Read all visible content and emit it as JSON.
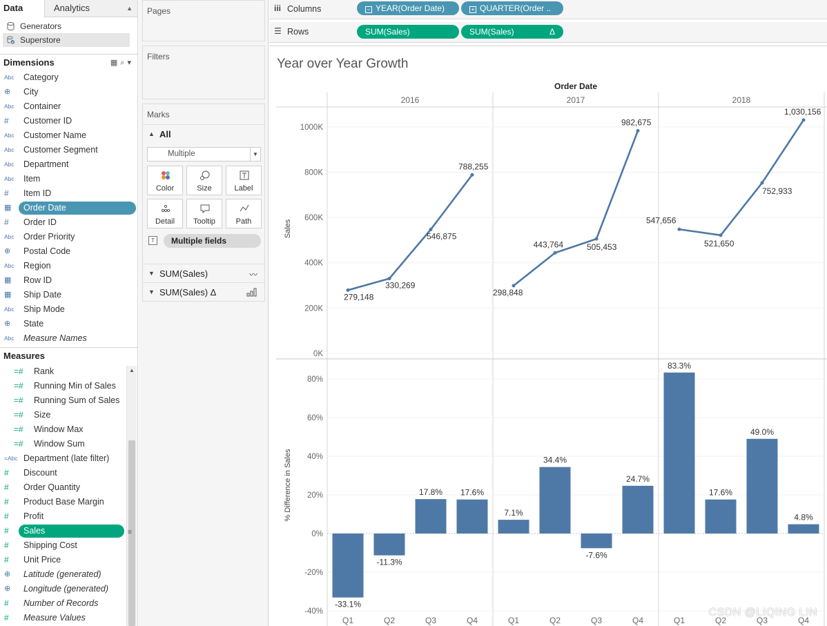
{
  "data_pane": {
    "tabs": [
      "Data",
      "Analytics"
    ],
    "datasources": [
      "Generators",
      "Superstore"
    ],
    "dimensions_header": "Dimensions",
    "dimensions": [
      {
        "label": "Category",
        "icon": "Abc",
        "type": "string"
      },
      {
        "label": "City",
        "icon": "globe",
        "type": "geo"
      },
      {
        "label": "Container",
        "icon": "Abc",
        "type": "string"
      },
      {
        "label": "Customer ID",
        "icon": "#",
        "type": "number"
      },
      {
        "label": "Customer Name",
        "icon": "Abc",
        "type": "string"
      },
      {
        "label": "Customer Segment",
        "icon": "Abc",
        "type": "string"
      },
      {
        "label": "Department",
        "icon": "Abc",
        "type": "string"
      },
      {
        "label": "Item",
        "icon": "Abc",
        "type": "string"
      },
      {
        "label": "Item ID",
        "icon": "#",
        "type": "number"
      },
      {
        "label": "Order Date",
        "icon": "calendar",
        "type": "date",
        "highlighted": true
      },
      {
        "label": "Order ID",
        "icon": "#",
        "type": "number"
      },
      {
        "label": "Order Priority",
        "icon": "Abc",
        "type": "string"
      },
      {
        "label": "Postal Code",
        "icon": "globe",
        "type": "geo"
      },
      {
        "label": "Region",
        "icon": "Abc",
        "type": "string"
      },
      {
        "label": "Row ID",
        "icon": "calendar",
        "type": "date"
      },
      {
        "label": "Ship Date",
        "icon": "calendar",
        "type": "date"
      },
      {
        "label": "Ship Mode",
        "icon": "Abc",
        "type": "string"
      },
      {
        "label": "State",
        "icon": "globe",
        "type": "geo"
      },
      {
        "label": "Measure Names",
        "icon": "Abc",
        "type": "string",
        "italic": true
      }
    ],
    "measures_header": "Measures",
    "measures": [
      {
        "label": "Rank",
        "icon": "=#",
        "indent": true
      },
      {
        "label": "Running Min of Sales",
        "icon": "=#",
        "indent": true
      },
      {
        "label": "Running Sum of Sales",
        "icon": "=#",
        "indent": true
      },
      {
        "label": "Size",
        "icon": "=#",
        "indent": true
      },
      {
        "label": "Window Max",
        "icon": "=#",
        "indent": true
      },
      {
        "label": "Window Sum",
        "icon": "=#",
        "indent": true
      },
      {
        "label": "Department (late filter)",
        "icon": "=Abc"
      },
      {
        "label": "Discount",
        "icon": "#"
      },
      {
        "label": "Order Quantity",
        "icon": "#"
      },
      {
        "label": "Product Base Margin",
        "icon": "#"
      },
      {
        "label": "Profit",
        "icon": "#"
      },
      {
        "label": "Sales",
        "icon": "#",
        "highlighted": true
      },
      {
        "label": "Shipping Cost",
        "icon": "#"
      },
      {
        "label": "Unit Price",
        "icon": "#"
      },
      {
        "label": "Latitude (generated)",
        "icon": "globe",
        "italic": true
      },
      {
        "label": "Longitude (generated)",
        "icon": "globe",
        "italic": true
      },
      {
        "label": "Number of Records",
        "icon": "#",
        "italic": true
      },
      {
        "label": "Measure Values",
        "icon": "#",
        "italic": true
      }
    ]
  },
  "cards": {
    "pages": "Pages",
    "filters": "Filters",
    "marks": "Marks",
    "marks_all": "All",
    "mark_type": "Multiple",
    "mark_buttons": [
      "Color",
      "Size",
      "Label",
      "Detail",
      "Tooltip",
      "Path"
    ],
    "mark_field": "Multiple fields",
    "mark_rows": [
      {
        "label": "SUM(Sales)",
        "icon": "line"
      },
      {
        "label": "SUM(Sales) Δ",
        "icon": "bar"
      }
    ]
  },
  "shelves": {
    "columns_label": "Columns",
    "rows_label": "Rows",
    "columns": [
      {
        "label": "YEAR(Order Date)",
        "kind": "minus"
      },
      {
        "label": "QUARTER(Order ..",
        "kind": "plus"
      }
    ],
    "rows": [
      {
        "label": "SUM(Sales)"
      },
      {
        "label": "SUM(Sales)",
        "delta": "Δ"
      }
    ]
  },
  "view": {
    "title": "Year over Year Growth",
    "watermark": "CSDN @LIQING LIN"
  },
  "colors": {
    "mark": "#4e79a7",
    "dimension_pill": "#4996b2",
    "measure_pill": "#00a67e"
  },
  "chart_data": [
    {
      "type": "line",
      "column_header": "Order Date",
      "years": [
        "2016",
        "2017",
        "2018"
      ],
      "quarters": [
        "Q1",
        "Q2",
        "Q3",
        "Q4"
      ],
      "ylabel": "Sales",
      "ylim": [
        0,
        1100000
      ],
      "yticks": [
        0,
        200000,
        400000,
        600000,
        800000,
        1000000
      ],
      "ytick_labels": [
        "0K",
        "200K",
        "400K",
        "600K",
        "800K",
        "1000K"
      ],
      "series": [
        {
          "values": [
            279148,
            330269,
            546875,
            788255,
            298848,
            443764,
            505453,
            982675,
            547656,
            521650,
            752933,
            1030156
          ]
        }
      ],
      "labels": [
        "279,148",
        "330,269",
        "546,875",
        "788,255",
        "298,848",
        "443,764",
        "505,453",
        "982,675",
        "547,656",
        "521,650",
        "752,933",
        "1,030,156"
      ]
    },
    {
      "type": "bar",
      "years": [
        "2016",
        "2017",
        "2018"
      ],
      "categories": [
        "Q1",
        "Q2",
        "Q3",
        "Q4",
        "Q1",
        "Q2",
        "Q3",
        "Q4",
        "Q1",
        "Q2",
        "Q3",
        "Q4"
      ],
      "ylabel": "% Difference in Sales",
      "ylim": [
        -0.4,
        0.9
      ],
      "yticks": [
        -0.4,
        -0.2,
        0,
        0.2,
        0.4,
        0.6,
        0.8
      ],
      "ytick_labels": [
        "-40%",
        "-20%",
        "0%",
        "20%",
        "40%",
        "60%",
        "80%"
      ],
      "values": [
        -0.331,
        -0.113,
        0.178,
        0.176,
        0.071,
        0.344,
        -0.076,
        0.247,
        0.833,
        0.176,
        0.49,
        0.048
      ],
      "labels": [
        "-33.1%",
        "-11.3%",
        "17.8%",
        "17.6%",
        "7.1%",
        "34.4%",
        "-7.6%",
        "24.7%",
        "83.3%",
        "17.6%",
        "49.0%",
        "4.8%"
      ]
    }
  ]
}
